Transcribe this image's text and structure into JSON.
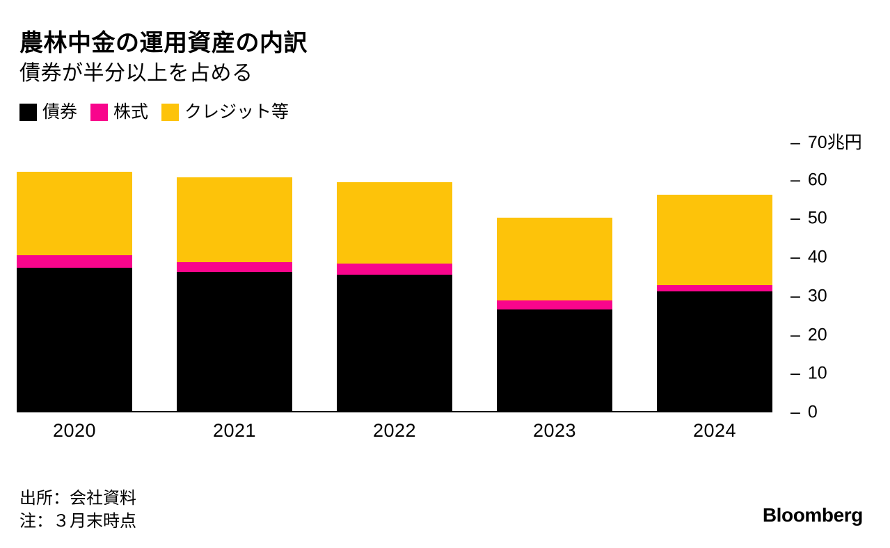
{
  "chart_data": {
    "type": "bar",
    "stacked": true,
    "title": "農林中金の運用資産の内訳",
    "subtitle": "債券が半分以上を占める",
    "categories": [
      "2020",
      "2021",
      "2022",
      "2023",
      "2024"
    ],
    "series": [
      {
        "key": "bonds",
        "name": "債券",
        "color": "#000000",
        "values": [
          37.1,
          36.1,
          35.4,
          26.4,
          31.1
        ]
      },
      {
        "key": "stocks",
        "name": "株式",
        "color": "#F8058C",
        "values": [
          3.3,
          2.5,
          2.9,
          2.2,
          1.6
        ]
      },
      {
        "key": "credit",
        "name": "クレジット等",
        "color": "#FDC30A",
        "values": [
          21.7,
          22.1,
          21.0,
          21.6,
          23.5
        ]
      }
    ],
    "unit": "兆円",
    "ylim": [
      0,
      70
    ],
    "yticks": [
      0,
      10,
      20,
      30,
      40,
      50,
      60,
      70
    ],
    "ytick_labels": [
      "0",
      "10",
      "20",
      "30",
      "40",
      "50",
      "60",
      "70兆円"
    ],
    "tick_prefix": "–",
    "grid": false,
    "axis_side": "right",
    "legend_position": "top-left"
  },
  "footer": {
    "source": "出所：会社資料",
    "note": "注：３月末時点",
    "brand": "Bloomberg"
  }
}
